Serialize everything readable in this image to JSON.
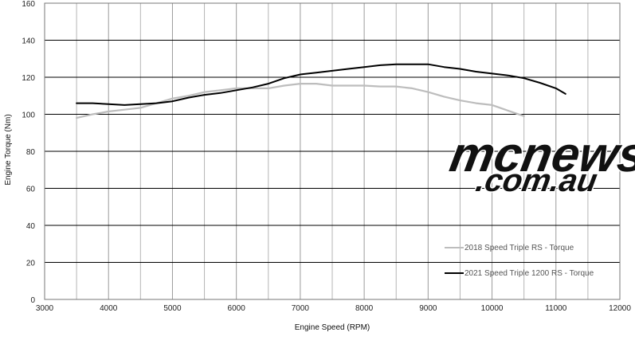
{
  "chart_data": {
    "type": "line",
    "xlabel": "Engine Speed (RPM)",
    "ylabel": "Engine Torque (Nm)",
    "xlim": [
      3000,
      12000
    ],
    "ylim": [
      0,
      160
    ],
    "x_ticks": [
      "3000",
      "4000",
      "5000",
      "6000",
      "7000",
      "8000",
      "9000",
      "10000",
      "11000",
      "12000"
    ],
    "y_ticks": [
      "0",
      "20",
      "40",
      "60",
      "80",
      "100",
      "120",
      "140",
      "160"
    ],
    "grid": {
      "vertical": true,
      "horizontal": true
    },
    "legend_position": "bottom-right",
    "series": [
      {
        "name": "2018 Speed Triple RS - Torque",
        "color": "#bdbdbd",
        "x": [
          3500,
          3750,
          4000,
          4250,
          4500,
          4750,
          5000,
          5250,
          5500,
          5750,
          6000,
          6250,
          6500,
          6750,
          7000,
          7250,
          7500,
          7750,
          8000,
          8250,
          8500,
          8750,
          9000,
          9250,
          9500,
          9750,
          10000,
          10250,
          10500
        ],
        "y": [
          98,
          100,
          101.5,
          102.5,
          103.5,
          106,
          108.5,
          110,
          112,
          113,
          114,
          114,
          114,
          115.5,
          116.5,
          116.5,
          115.5,
          115.5,
          115.5,
          115,
          115,
          114,
          112,
          109.5,
          107.5,
          106,
          105,
          102,
          99
        ]
      },
      {
        "name": "2021 Speed Triple 1200 RS - Torque",
        "color": "#000000",
        "x": [
          3500,
          3750,
          4000,
          4250,
          4500,
          4750,
          5000,
          5250,
          5500,
          5750,
          6000,
          6250,
          6500,
          6750,
          7000,
          7250,
          7500,
          7750,
          8000,
          8250,
          8500,
          8750,
          9000,
          9250,
          9500,
          9750,
          10000,
          10250,
          10500,
          10750,
          11000,
          11150
        ],
        "y": [
          106,
          106,
          105.5,
          105,
          105.5,
          106,
          107,
          109,
          110.5,
          111.5,
          113,
          114.5,
          116.5,
          119.5,
          121.5,
          122.5,
          123.5,
          124.5,
          125.5,
          126.5,
          127,
          127,
          127,
          125.5,
          124.5,
          123,
          122,
          121,
          119.5,
          117,
          114,
          111
        ]
      }
    ]
  },
  "watermark": {
    "main": "mcnews",
    "sub": ".com.au",
    "color": "#111111",
    "outline_color": "#ffffff"
  }
}
